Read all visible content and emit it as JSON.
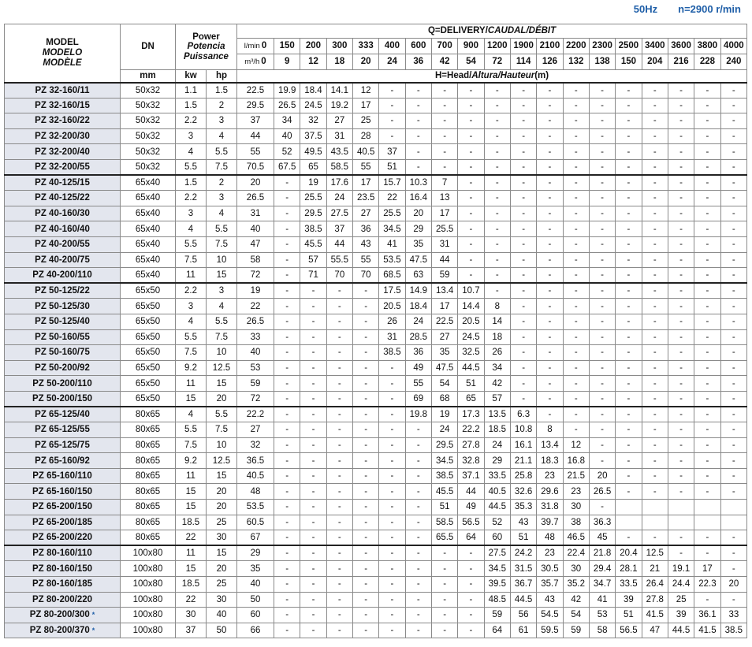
{
  "header": {
    "frequency": "50Hz",
    "speed": "n=2900 r/min"
  },
  "table": {
    "columns": {
      "model": [
        "MODEL",
        "MODELO",
        "MODÈLE"
      ],
      "dn": "DN",
      "dn_unit": "mm",
      "power": [
        "Power",
        "Potencia",
        "Puissance"
      ],
      "kw": "kw",
      "hp": "hp",
      "delivery": [
        "Q=DELIVERY/",
        "CAUDAL/DÉBIT"
      ],
      "head": [
        "H=Head/",
        "Altura/Hauteur",
        "(m)"
      ],
      "flow_units": [
        "l/min",
        "m³/h"
      ],
      "lpm": [
        0,
        150,
        200,
        300,
        333,
        400,
        600,
        700,
        900,
        1200,
        1900,
        2100,
        2200,
        2300,
        2500,
        3400,
        3600,
        3800,
        4000
      ],
      "m3h": [
        0,
        9,
        12,
        18,
        20,
        24,
        36,
        42,
        54,
        72,
        114,
        126,
        132,
        138,
        150,
        204,
        216,
        228,
        240
      ]
    },
    "rows": [
      [
        "PZ 32-160/11",
        "50x32",
        1.1,
        1.5,
        [
          22.5,
          19.9,
          18.4,
          14.1,
          12,
          "-",
          "-",
          "-",
          "-",
          "-",
          "-",
          "-",
          "-",
          "-",
          "-",
          "-",
          "-",
          "-",
          "-"
        ]
      ],
      [
        "PZ 32-160/15",
        "50x32",
        1.5,
        2,
        [
          29.5,
          26.5,
          24.5,
          19.2,
          17,
          "-",
          "-",
          "-",
          "-",
          "-",
          "-",
          "-",
          "-",
          "-",
          "-",
          "-",
          "-",
          "-",
          "-"
        ]
      ],
      [
        "PZ 32-160/22",
        "50x32",
        2.2,
        3,
        [
          37,
          34,
          32,
          27,
          25,
          "-",
          "-",
          "-",
          "-",
          "-",
          "-",
          "-",
          "-",
          "-",
          "-",
          "-",
          "-",
          "-",
          "-"
        ]
      ],
      [
        "PZ 32-200/30",
        "50x32",
        3,
        4,
        [
          44,
          40,
          37.5,
          31,
          28,
          "-",
          "-",
          "-",
          "-",
          "-",
          "-",
          "-",
          "-",
          "-",
          "-",
          "-",
          "-",
          "-",
          "-"
        ]
      ],
      [
        "PZ 32-200/40",
        "50x32",
        4,
        5.5,
        [
          55,
          52,
          49.5,
          43.5,
          40.5,
          37,
          "-",
          "-",
          "-",
          "-",
          "-",
          "-",
          "-",
          "-",
          "-",
          "-",
          "-",
          "-",
          "-"
        ]
      ],
      [
        "PZ 32-200/55",
        "50x32",
        5.5,
        7.5,
        [
          70.5,
          67.5,
          65,
          58.5,
          55,
          51,
          "-",
          "-",
          "-",
          "-",
          "-",
          "-",
          "-",
          "-",
          "-",
          "-",
          "-",
          "-",
          "-"
        ]
      ],
      [
        "PZ 40-125/15",
        "65x40",
        1.5,
        2,
        [
          20,
          "-",
          19,
          17.6,
          17,
          15.7,
          10.3,
          7,
          "-",
          "-",
          "-",
          "-",
          "-",
          "-",
          "-",
          "-",
          "-",
          "-",
          "-"
        ]
      ],
      [
        "PZ 40-125/22",
        "65x40",
        2.2,
        3,
        [
          26.5,
          "-",
          25.5,
          24,
          23.5,
          22,
          16.4,
          13,
          "-",
          "-",
          "-",
          "-",
          "-",
          "-",
          "-",
          "-",
          "-",
          "-",
          "-"
        ]
      ],
      [
        "PZ 40-160/30",
        "65x40",
        3,
        4,
        [
          31,
          "-",
          29.5,
          27.5,
          27,
          25.5,
          20,
          17,
          "-",
          "-",
          "-",
          "-",
          "-",
          "-",
          "-",
          "-",
          "-",
          "-",
          "-"
        ]
      ],
      [
        "PZ 40-160/40",
        "65x40",
        4,
        5.5,
        [
          40,
          "-",
          38.5,
          37,
          36,
          34.5,
          29,
          25.5,
          "-",
          "-",
          "-",
          "-",
          "-",
          "-",
          "-",
          "-",
          "-",
          "-",
          "-"
        ]
      ],
      [
        "PZ 40-200/55",
        "65x40",
        5.5,
        7.5,
        [
          47,
          "-",
          45.5,
          44,
          43,
          41,
          35,
          31,
          "-",
          "-",
          "-",
          "-",
          "-",
          "-",
          "-",
          "-",
          "-",
          "-",
          "-"
        ]
      ],
      [
        "PZ 40-200/75",
        "65x40",
        7.5,
        10,
        [
          58,
          "-",
          57,
          55.5,
          55,
          53.5,
          47.5,
          44,
          "-",
          "-",
          "-",
          "-",
          "-",
          "-",
          "-",
          "-",
          "-",
          "-",
          "-"
        ]
      ],
      [
        "PZ 40-200/110",
        "65x40",
        11,
        15,
        [
          72,
          "-",
          71,
          70,
          70,
          68.5,
          63,
          59,
          "-",
          "-",
          "-",
          "-",
          "-",
          "-",
          "-",
          "-",
          "-",
          "-",
          "-"
        ]
      ],
      [
        "PZ 50-125/22",
        "65x50",
        2.2,
        3,
        [
          19,
          "-",
          "-",
          "-",
          "-",
          17.5,
          14.9,
          13.4,
          10.7,
          "-",
          "-",
          "-",
          "-",
          "-",
          "-",
          "-",
          "-",
          "-",
          "-"
        ]
      ],
      [
        "PZ 50-125/30",
        "65x50",
        3,
        4,
        [
          22,
          "-",
          "-",
          "-",
          "-",
          20.5,
          18.4,
          17,
          14.4,
          8,
          "-",
          "-",
          "-",
          "-",
          "-",
          "-",
          "-",
          "-",
          "-"
        ]
      ],
      [
        "PZ 50-125/40",
        "65x50",
        4,
        5.5,
        [
          26.5,
          "-",
          "-",
          "-",
          "-",
          26,
          24,
          22.5,
          20.5,
          14,
          "-",
          "-",
          "-",
          "-",
          "-",
          "-",
          "-",
          "-",
          "-"
        ]
      ],
      [
        "PZ 50-160/55",
        "65x50",
        5.5,
        7.5,
        [
          33,
          "-",
          "-",
          "-",
          "-",
          31,
          28.5,
          27,
          24.5,
          18,
          "-",
          "-",
          "-",
          "-",
          "-",
          "-",
          "-",
          "-",
          "-"
        ]
      ],
      [
        "PZ 50-160/75",
        "65x50",
        7.5,
        10,
        [
          40,
          "-",
          "-",
          "-",
          "-",
          38.5,
          36,
          35,
          32.5,
          26,
          "-",
          "-",
          "-",
          "-",
          "-",
          "-",
          "-",
          "-",
          "-"
        ]
      ],
      [
        "PZ 50-200/92",
        "65x50",
        9.2,
        12.5,
        [
          53,
          "-",
          "-",
          "-",
          "-",
          "-",
          49,
          47.5,
          44.5,
          34,
          "-",
          "-",
          "-",
          "-",
          "-",
          "-",
          "-",
          "-",
          "-"
        ]
      ],
      [
        "PZ 50-200/110",
        "65x50",
        11,
        15,
        [
          59,
          "-",
          "-",
          "-",
          "-",
          "-",
          55,
          54,
          51,
          42,
          "-",
          "-",
          "-",
          "-",
          "-",
          "-",
          "-",
          "-",
          "-"
        ]
      ],
      [
        "PZ 50-200/150",
        "65x50",
        15,
        20,
        [
          72,
          "-",
          "-",
          "-",
          "-",
          "-",
          69,
          68,
          65,
          57,
          "-",
          "-",
          "-",
          "-",
          "-",
          "-",
          "-",
          "-",
          "-"
        ]
      ],
      [
        "PZ 65-125/40",
        "80x65",
        4,
        5.5,
        [
          22.2,
          "-",
          "-",
          "-",
          "-",
          "-",
          19.8,
          19,
          17.3,
          13.5,
          6.3,
          "-",
          "-",
          "-",
          "-",
          "-",
          "-",
          "-",
          "-"
        ]
      ],
      [
        "PZ 65-125/55",
        "80x65",
        5.5,
        7.5,
        [
          27,
          "-",
          "-",
          "-",
          "-",
          "-",
          "-",
          24,
          22.2,
          18.5,
          10.8,
          8,
          "-",
          "-",
          "-",
          "-",
          "-",
          "-",
          "-"
        ]
      ],
      [
        "PZ 65-125/75",
        "80x65",
        7.5,
        10,
        [
          32,
          "-",
          "-",
          "-",
          "-",
          "-",
          "-",
          29.5,
          27.8,
          24,
          16.1,
          13.4,
          12,
          "-",
          "-",
          "-",
          "-",
          "-",
          "-"
        ]
      ],
      [
        "PZ 65-160/92",
        "80x65",
        9.2,
        12.5,
        [
          36.5,
          "-",
          "-",
          "-",
          "-",
          "-",
          "-",
          34.5,
          32.8,
          29,
          21.1,
          18.3,
          16.8,
          "-",
          "-",
          "-",
          "-",
          "-",
          "-"
        ]
      ],
      [
        "PZ 65-160/110",
        "80x65",
        11,
        15,
        [
          40.5,
          "-",
          "-",
          "-",
          "-",
          "-",
          "-",
          38.5,
          37.1,
          33.5,
          25.8,
          23,
          21.5,
          20,
          "-",
          "-",
          "-",
          "-",
          "-"
        ]
      ],
      [
        "PZ 65-160/150",
        "80x65",
        15,
        20,
        [
          48,
          "-",
          "-",
          "-",
          "-",
          "-",
          "-",
          45.5,
          44,
          40.5,
          32.6,
          29.6,
          23,
          26.5,
          "-",
          "-",
          "-",
          "-",
          "-"
        ]
      ],
      [
        "PZ 65-200/150",
        "80x65",
        15,
        20,
        [
          53.5,
          "-",
          "-",
          "-",
          "-",
          "-",
          "-",
          51,
          49,
          44.5,
          35.3,
          31.8,
          30,
          "-",
          null,
          null,
          null,
          null,
          null
        ]
      ],
      [
        "PZ 65-200/185",
        "80x65",
        18.5,
        25,
        [
          60.5,
          "-",
          "-",
          "-",
          "-",
          "-",
          "-",
          58.5,
          56.5,
          52,
          43,
          39.7,
          38,
          36.3,
          null,
          null,
          null,
          null,
          null
        ]
      ],
      [
        "PZ 65-200/220",
        "80x65",
        22,
        30,
        [
          67,
          "-",
          "-",
          "-",
          "-",
          "-",
          "-",
          65.5,
          64,
          60,
          51,
          48,
          46.5,
          45,
          "-",
          "-",
          "-",
          "-",
          "-"
        ]
      ],
      [
        "PZ 80-160/110",
        "100x80",
        11,
        15,
        [
          29,
          "-",
          "-",
          "-",
          "-",
          "-",
          "-",
          "-",
          "-",
          27.5,
          24.2,
          23,
          22.4,
          21.8,
          20.4,
          12.5,
          "-",
          "-",
          "-"
        ]
      ],
      [
        "PZ 80-160/150",
        "100x80",
        15,
        20,
        [
          35,
          "-",
          "-",
          "-",
          "-",
          "-",
          "-",
          "-",
          "-",
          34.5,
          31.5,
          30.5,
          30,
          29.4,
          28.1,
          21,
          19.1,
          17,
          "-"
        ]
      ],
      [
        "PZ 80-160/185",
        "100x80",
        18.5,
        25,
        [
          40,
          "-",
          "-",
          "-",
          "-",
          "-",
          "-",
          "-",
          "-",
          39.5,
          36.7,
          35.7,
          35.2,
          34.7,
          33.5,
          26.4,
          24.4,
          22.3,
          20
        ]
      ],
      [
        "PZ 80-200/220",
        "100x80",
        22,
        30,
        [
          50,
          "-",
          "-",
          "-",
          "-",
          "-",
          "-",
          "-",
          "-",
          48.5,
          44.5,
          43,
          42,
          41,
          39,
          27.8,
          25,
          "-",
          "-"
        ]
      ],
      [
        "PZ 80-200/300",
        "100x80",
        30,
        40,
        [
          60,
          "-",
          "-",
          "-",
          "-",
          "-",
          "-",
          "-",
          "-",
          59,
          56,
          54.5,
          54,
          53,
          51,
          41.5,
          39,
          36.1,
          33
        ],
        "*"
      ],
      [
        "PZ 80-200/370",
        "100x80",
        37,
        50,
        [
          66,
          "-",
          "-",
          "-",
          "-",
          "-",
          "-",
          "-",
          "-",
          64,
          61,
          59.5,
          59,
          58,
          56.5,
          47,
          44.5,
          41.5,
          38.5
        ],
        "*"
      ]
    ]
  }
}
